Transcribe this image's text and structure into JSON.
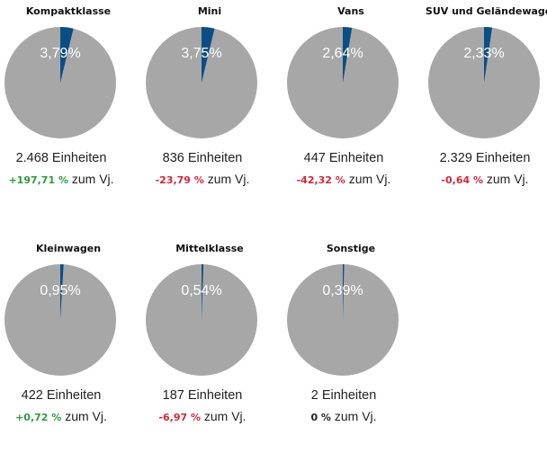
{
  "colors": {
    "share": "#0b4e86",
    "rest": "#a7a7a7",
    "positive": "#2e9a3f",
    "negative": "#d0283b",
    "neutral": "#222222"
  },
  "unit_suffix": "Einheiten",
  "change_suffix": "zum Vj.",
  "chart_data": [
    {
      "type": "pie",
      "title": "Kompaktklasse",
      "share_percent": 3.79,
      "share_label": "3,79%",
      "units": "2.468",
      "change": "+197,71 %",
      "trend": "positive"
    },
    {
      "type": "pie",
      "title": "Mini",
      "share_percent": 3.75,
      "share_label": "3,75%",
      "units": "836",
      "change": "-23,79 %",
      "trend": "negative"
    },
    {
      "type": "pie",
      "title": "Vans",
      "share_percent": 2.64,
      "share_label": "2,64%",
      "units": "447",
      "change": "-42,32 %",
      "trend": "negative"
    },
    {
      "type": "pie",
      "title": "SUV und Geländewagen",
      "share_percent": 2.33,
      "share_label": "2,33%",
      "units": "2.329",
      "change": "-0,64 %",
      "trend": "negative"
    },
    {
      "type": "pie",
      "title": "Kleinwagen",
      "share_percent": 0.95,
      "share_label": "0,95%",
      "units": "422",
      "change": "+0,72 %",
      "trend": "positive"
    },
    {
      "type": "pie",
      "title": "Mittelklasse",
      "share_percent": 0.54,
      "share_label": "0,54%",
      "units": "187",
      "change": "-6,97 %",
      "trend": "negative"
    },
    {
      "type": "pie",
      "title": "Sonstige",
      "share_percent": 0.39,
      "share_label": "0,39%",
      "units": "2",
      "change": "0 %",
      "trend": "neutral"
    }
  ]
}
